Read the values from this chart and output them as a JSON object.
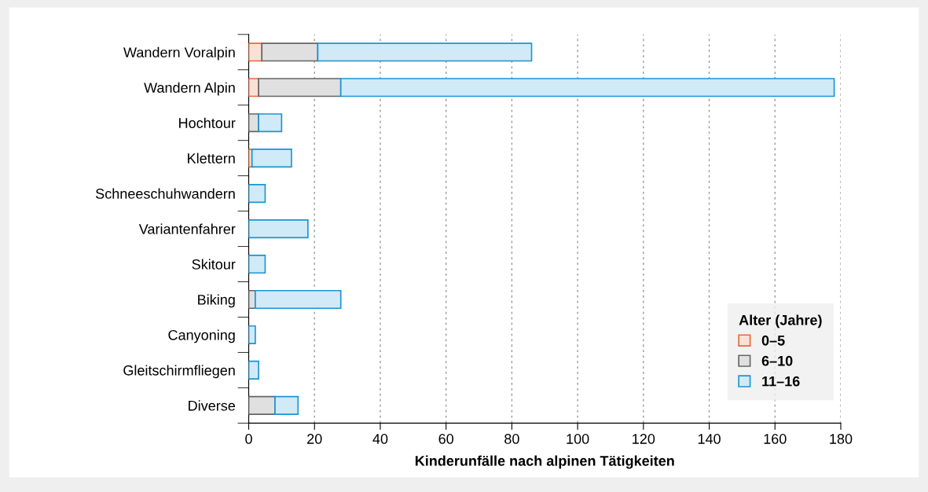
{
  "chart_data": {
    "type": "bar",
    "orientation": "horizontal",
    "stacked": true,
    "xlabel": "Kinderunfälle nach alpinen Tätigkeiten",
    "legend_title": "Alter (Jahre)",
    "legend": "bottom right",
    "grid": "x",
    "categories": [
      "Wandern Voralpin",
      "Wandern Alpin",
      "Hochtour",
      "Klettern",
      "Schneeschuhwandern",
      "Variantenfahrer",
      "Skitour",
      "Biking",
      "Canyoning",
      "Gleitschirmfliegen",
      "Diverse"
    ],
    "series": [
      {
        "name": "0–5",
        "color": "#e8693a",
        "values": [
          4,
          3,
          null,
          1,
          null,
          null,
          null,
          null,
          null,
          null,
          null
        ]
      },
      {
        "name": "6–10",
        "color": "#666666",
        "values": [
          17,
          25,
          3,
          null,
          null,
          null,
          null,
          2,
          null,
          null,
          8
        ]
      },
      {
        "name": "11–16",
        "color": "#1a95d6",
        "values": [
          65,
          150,
          7,
          12,
          5,
          18,
          5,
          26,
          2,
          3,
          7
        ]
      }
    ],
    "xlim": [
      0,
      180
    ],
    "xticks": [
      0,
      20,
      40,
      60,
      80,
      100,
      120,
      140,
      160,
      180
    ]
  }
}
